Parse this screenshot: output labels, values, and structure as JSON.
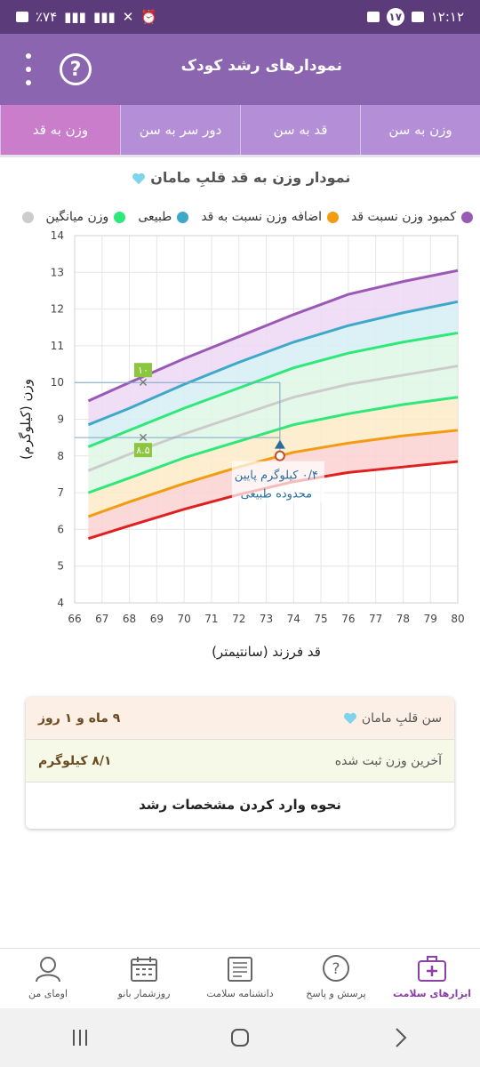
{
  "status": {
    "time": "۱۲:۱۲",
    "battery": "٪۷۴",
    "notif_count": "۱۷"
  },
  "appbar": {
    "title": "نمودارهای رشد کودک",
    "help_symbol": "?"
  },
  "tabs": [
    {
      "label": "وزن به سن",
      "active": false
    },
    {
      "label": "قد به سن",
      "active": false
    },
    {
      "label": "دور سر به سن",
      "active": false
    },
    {
      "label": "وزن به قد",
      "active": true
    }
  ],
  "chart_title": "نمودار وزن به قد قلبِ مامان",
  "legend": [
    {
      "label": "کمبود وزن نسبت قد",
      "color": "#9b59b6"
    },
    {
      "label": "اضافه وزن نسبت به قد",
      "color": "#f39c12"
    },
    {
      "label": "طبیعی",
      "color": "#3ea8c9"
    },
    {
      "label": "وزن میانگین",
      "color": "#2ee87a"
    },
    {
      "label": "",
      "color": "#cccccc"
    }
  ],
  "chart_data": {
    "type": "line",
    "xlabel": "قد فرزند (سانتیمتر)",
    "ylabel": "وزن (کیلوگرم)",
    "xlim": [
      66,
      80
    ],
    "ylim": [
      4,
      14
    ],
    "xticks": [
      "66",
      "67",
      "68",
      "69",
      "70",
      "71",
      "72",
      "73",
      "74",
      "75",
      "76",
      "77",
      "78",
      "79",
      "80"
    ],
    "yticks": [
      "4",
      "5",
      "6",
      "7",
      "8",
      "9",
      "10",
      "11",
      "12",
      "13",
      "14"
    ],
    "x": [
      66.5,
      68,
      70,
      72,
      74,
      76,
      78,
      80
    ],
    "series": [
      {
        "color": "#9b59b6",
        "values": [
          9.5,
          10.0,
          10.65,
          11.25,
          11.85,
          12.4,
          12.75,
          13.05
        ]
      },
      {
        "color": "#3ea8c9",
        "values": [
          8.85,
          9.3,
          9.95,
          10.55,
          11.1,
          11.55,
          11.9,
          12.2
        ]
      },
      {
        "color": "#2ee87a",
        "values": [
          8.25,
          8.7,
          9.3,
          9.85,
          10.4,
          10.8,
          11.1,
          11.35
        ]
      },
      {
        "color": "#cccccc",
        "values": [
          7.6,
          8.05,
          8.6,
          9.1,
          9.6,
          9.95,
          10.2,
          10.45
        ]
      },
      {
        "color": "#2ee87a",
        "values": [
          7.0,
          7.4,
          7.95,
          8.4,
          8.85,
          9.15,
          9.4,
          9.6
        ]
      },
      {
        "color": "#f39c12",
        "values": [
          6.35,
          6.75,
          7.25,
          7.7,
          8.1,
          8.35,
          8.55,
          8.7
        ]
      },
      {
        "color": "#e02020",
        "values": [
          5.75,
          6.1,
          6.55,
          6.95,
          7.3,
          7.55,
          7.7,
          7.85
        ]
      }
    ],
    "bands": [
      {
        "from": 0,
        "to": 1,
        "color": "#ecd8f4"
      },
      {
        "from": 1,
        "to": 2,
        "color": "#d6eef5"
      },
      {
        "from": 2,
        "to": 4,
        "color": "#dff7e6"
      },
      {
        "from": 4,
        "to": 5,
        "color": "#fdebc8"
      },
      {
        "from": 5,
        "to": 6,
        "color": "#fcd2d2"
      }
    ],
    "point": {
      "x": 73.5,
      "y": 8.1,
      "ref_x": 73.5,
      "ref_y_top": 10.0,
      "ref_y_low": 8.5
    },
    "markers": [
      {
        "x": 68.5,
        "y": 10.0,
        "label": "۱۰"
      },
      {
        "x": 68.5,
        "y": 8.5,
        "label": "۸.۵"
      }
    ],
    "annotation": [
      "۰/۴ کیلوگرم پایین",
      "محدوده طبیعی"
    ]
  },
  "info": {
    "age_label": "سن قلبِ مامان",
    "age_value": "۹ ماه و ۱ روز",
    "weight_label": "آخرین وزن ثبت شده",
    "weight_value": "۸/۱ کیلوگرم",
    "guide_button": "نحوه وارد کردن مشخصات رشد"
  },
  "bottom_nav": [
    {
      "label": "ابزارهای سلامت",
      "active": true,
      "icon": "medical-kit-icon"
    },
    {
      "label": "پرسش و پاسخ",
      "active": false,
      "icon": "question-bubble-icon"
    },
    {
      "label": "دانشنامه سلامت",
      "active": false,
      "icon": "encyclopedia-icon"
    },
    {
      "label": "روزشمار بانو",
      "active": false,
      "icon": "calendar-icon"
    },
    {
      "label": "اومای من",
      "active": false,
      "icon": "profile-icon"
    }
  ]
}
